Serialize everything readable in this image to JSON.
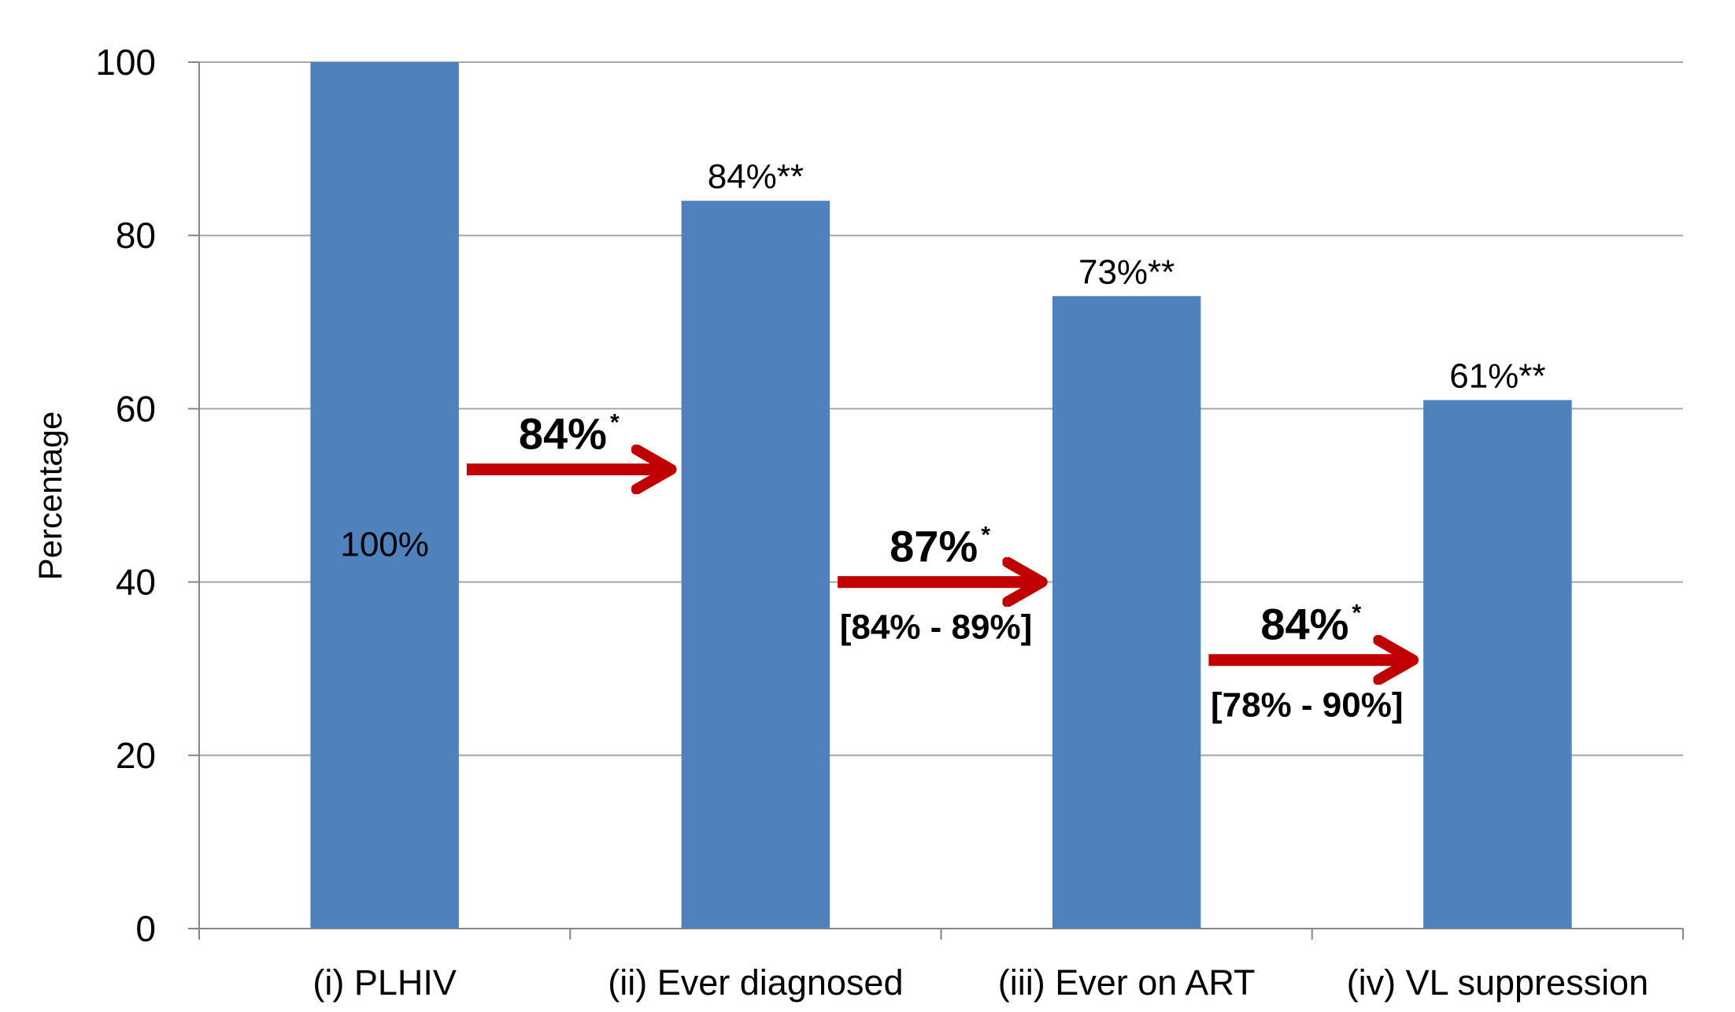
{
  "chart_data": {
    "type": "bar",
    "categories": [
      "(i) PLHIV",
      "(ii) Ever diagnosed",
      "(iii) Ever on ART",
      "(iv) VL suppression"
    ],
    "values": [
      100,
      84,
      73,
      61
    ],
    "value_labels": [
      "100%",
      "84%**",
      "73%**",
      "61%**"
    ],
    "ylabel": "Percentage",
    "ylim": [
      0,
      100
    ],
    "yticks": [
      0,
      20,
      40,
      60,
      80,
      100
    ],
    "grid": true,
    "bar_color": "#4F81BD",
    "arrow_color": "#C00000",
    "conversions": [
      {
        "from": 0,
        "to": 1,
        "value": "84%",
        "mark": "*",
        "level": 53,
        "ci": ""
      },
      {
        "from": 1,
        "to": 2,
        "value": "87%",
        "mark": "*",
        "level": 40,
        "ci": "[84% - 89%]"
      },
      {
        "from": 2,
        "to": 3,
        "value": "84%",
        "mark": "*",
        "level": 31,
        "ci": "[78% - 90%]"
      }
    ]
  }
}
